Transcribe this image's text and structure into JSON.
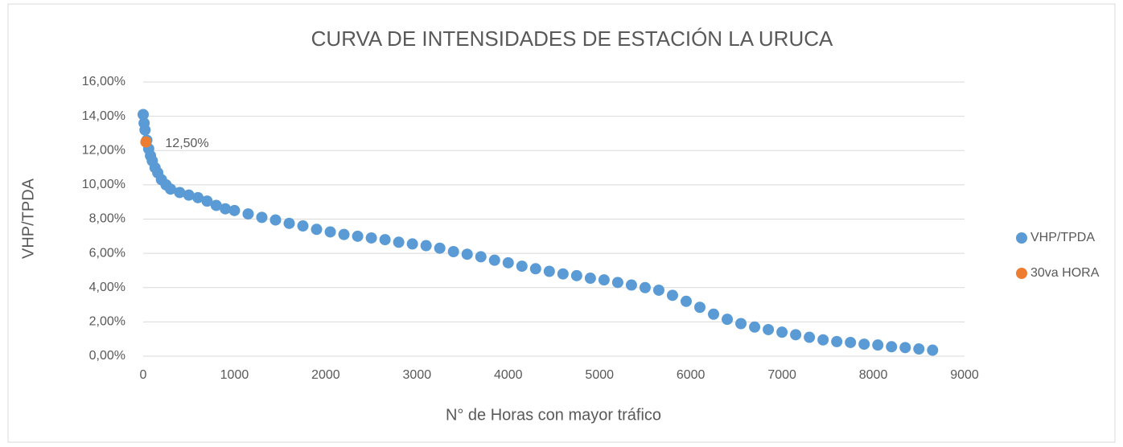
{
  "chart_data": {
    "type": "scatter",
    "title": "CURVA DE INTENSIDADES DE ESTACIÓN  LA URUCA",
    "x_label": "N° de Horas con mayor tráfico",
    "y_label": "VHP/TPDA",
    "series": [
      {
        "name": "VHP/TPDA",
        "color": "#5b9bd5",
        "x": [
          0,
          10,
          20,
          40,
          60,
          80,
          100,
          130,
          160,
          200,
          250,
          300,
          400,
          500,
          600,
          700,
          800,
          900,
          1000,
          1150,
          1300,
          1450,
          1600,
          1750,
          1900,
          2050,
          2200,
          2350,
          2500,
          2650,
          2800,
          2950,
          3100,
          3250,
          3400,
          3550,
          3700,
          3850,
          4000,
          4150,
          4300,
          4450,
          4600,
          4750,
          4900,
          5050,
          5200,
          5350,
          5500,
          5650,
          5800,
          5950,
          6100,
          6250,
          6400,
          6550,
          6700,
          6850,
          7000,
          7150,
          7300,
          7450,
          7600,
          7750,
          7900,
          8050,
          8200,
          8350,
          8500,
          8650
        ],
        "values": [
          14.1,
          13.6,
          13.2,
          12.6,
          12.1,
          11.7,
          11.4,
          11.0,
          10.7,
          10.3,
          10.0,
          9.75,
          9.55,
          9.4,
          9.25,
          9.05,
          8.8,
          8.6,
          8.5,
          8.3,
          8.1,
          7.95,
          7.75,
          7.6,
          7.4,
          7.25,
          7.1,
          7.0,
          6.9,
          6.8,
          6.65,
          6.55,
          6.45,
          6.3,
          6.1,
          5.95,
          5.8,
          5.6,
          5.45,
          5.25,
          5.1,
          4.95,
          4.8,
          4.7,
          4.55,
          4.45,
          4.3,
          4.15,
          4.0,
          3.85,
          3.55,
          3.2,
          2.85,
          2.45,
          2.15,
          1.9,
          1.7,
          1.55,
          1.4,
          1.25,
          1.1,
          0.95,
          0.85,
          0.8,
          0.7,
          0.65,
          0.55,
          0.5,
          0.42,
          0.35
        ]
      },
      {
        "name": "30va HORA",
        "color": "#ed7d31",
        "x": [
          30
        ],
        "values": [
          12.5
        ],
        "value_labels": [
          "12,50%"
        ]
      }
    ],
    "xlim": [
      0,
      9000
    ],
    "xticks": [
      0,
      1000,
      2000,
      3000,
      4000,
      5000,
      6000,
      7000,
      8000,
      9000
    ],
    "ylim": [
      0,
      16
    ],
    "yticks": [
      {
        "value": 0,
        "label": "0,00%"
      },
      {
        "value": 2,
        "label": "2,00%"
      },
      {
        "value": 4,
        "label": "4,00%"
      },
      {
        "value": 6,
        "label": "6,00%"
      },
      {
        "value": 8,
        "label": "8,00%"
      },
      {
        "value": 10,
        "label": "10,00%"
      },
      {
        "value": 12,
        "label": "12,00%"
      },
      {
        "value": 14,
        "label": "14,00%"
      },
      {
        "value": 16,
        "label": "16,00%"
      }
    ],
    "grid": true,
    "legend": "right"
  }
}
